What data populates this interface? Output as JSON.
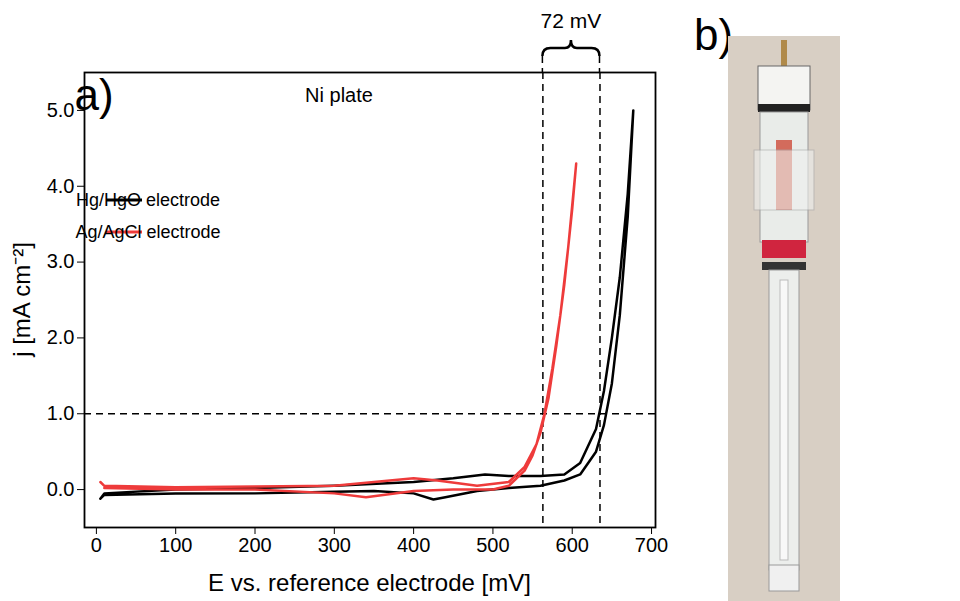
{
  "chart_data": {
    "type": "line",
    "panel_labels": [
      "a)",
      "b)"
    ],
    "inner_title": "Ni plate",
    "x_label": "E vs. reference electrode [mV]",
    "y_label": "j [mA cm⁻²]",
    "xlim": [
      -15,
      705
    ],
    "xticks": [
      0,
      100,
      200,
      300,
      400,
      500,
      600,
      700
    ],
    "ylim": [
      -0.5,
      5.5
    ],
    "yticks": [
      0,
      1,
      2,
      3,
      4,
      5
    ],
    "grid": false,
    "legend": "upper left",
    "reference_lines": {
      "x": [
        563,
        635
      ],
      "y": [
        1
      ]
    },
    "span_annotation": {
      "text": "72 mV",
      "x": [
        563,
        635
      ]
    },
    "series": [
      {
        "name": "Hg/HgO electrode",
        "color": "#000000",
        "x": [
          5,
          10,
          100,
          200,
          300,
          400,
          450,
          490,
          520,
          560,
          590,
          610,
          630,
          640,
          650,
          660,
          670,
          677,
          670,
          660,
          650,
          640,
          630,
          610,
          590,
          560,
          520,
          480,
          440,
          425,
          400,
          350,
          300,
          200,
          100,
          10,
          5
        ],
        "values": [
          -0.12,
          -0.05,
          0.0,
          0.02,
          0.05,
          0.1,
          0.15,
          0.2,
          0.18,
          0.18,
          0.2,
          0.35,
          0.8,
          1.3,
          2.0,
          2.8,
          3.9,
          5.0,
          3.6,
          2.3,
          1.4,
          0.85,
          0.5,
          0.2,
          0.12,
          0.05,
          0.02,
          -0.02,
          -0.1,
          -0.13,
          -0.05,
          -0.02,
          -0.03,
          -0.05,
          -0.05,
          -0.07,
          -0.12
        ]
      },
      {
        "name": "Ag/AgCl electrode",
        "color": "#ee3b3b",
        "x": [
          5,
          10,
          100,
          200,
          300,
          350,
          400,
          430,
          480,
          520,
          540,
          555,
          565,
          575,
          585,
          595,
          605,
          600,
          590,
          580,
          570,
          560,
          550,
          540,
          520,
          500,
          450,
          400,
          340,
          300,
          200,
          100,
          10
        ],
        "values": [
          0.1,
          0.05,
          0.03,
          0.04,
          0.05,
          0.1,
          0.15,
          0.12,
          0.05,
          0.1,
          0.3,
          0.6,
          1.0,
          1.6,
          2.3,
          3.2,
          4.3,
          3.7,
          2.7,
          1.9,
          1.2,
          0.75,
          0.45,
          0.25,
          0.05,
          0.0,
          0.0,
          -0.02,
          -0.1,
          -0.05,
          0.0,
          0.0,
          0.02
        ]
      }
    ]
  }
}
